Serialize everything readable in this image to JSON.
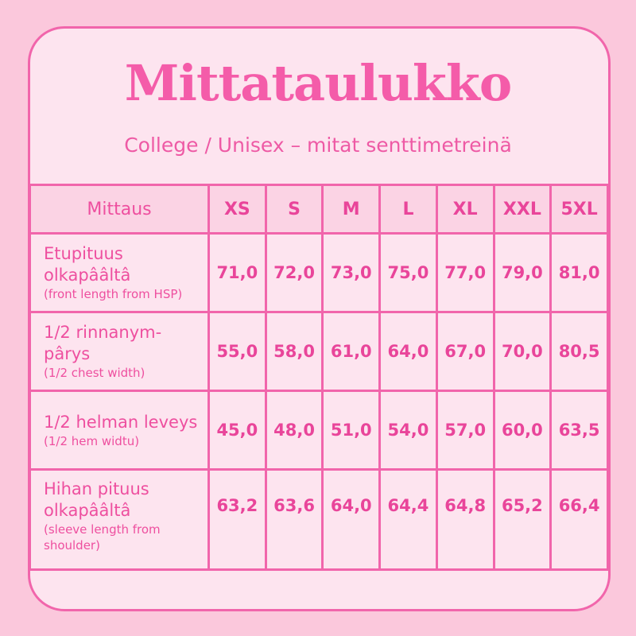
{
  "title": "Mittataulukko",
  "subtitle": "College / Unisex – mitat senttimetreinä",
  "colors": {
    "accent": "#f165ab",
    "background": "#fbc8dc",
    "card": "#fde4ef"
  },
  "table": {
    "headers": [
      "Mittaus",
      "XS",
      "S",
      "M",
      "L",
      "XL",
      "XXL",
      "5XL"
    ],
    "rows": [
      {
        "label": "Etupituus olkapââltâ",
        "note": "(front length from HSP)",
        "values": [
          "71,0",
          "72,0",
          "73,0",
          "75,0",
          "77,0",
          "79,0",
          "81,0"
        ]
      },
      {
        "label": "1/2 rinnanym-pârys",
        "note": "(1/2 chest width)",
        "values": [
          "55,0",
          "58,0",
          "61,0",
          "64,0",
          "67,0",
          "70,0",
          "80,5"
        ]
      },
      {
        "label": "1/2 helman leveys",
        "note": "(1/2 hem widtu)",
        "values": [
          "45,0",
          "48,0",
          "51,0",
          "54,0",
          "57,0",
          "60,0",
          "63,5"
        ]
      },
      {
        "label": "Hihan pituus olkapââltâ",
        "note": "(sleeve length from shoulder)",
        "values": [
          "63,2",
          "63,6",
          "64,0",
          "64,4",
          "64,8",
          "65,2",
          "66,4"
        ]
      }
    ]
  }
}
